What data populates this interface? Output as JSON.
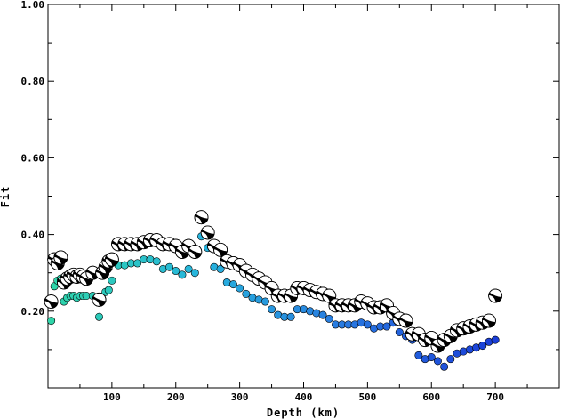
{
  "chart_data": {
    "type": "scatter",
    "title": "",
    "xlabel": "Depth (km)",
    "ylabel": "Fit",
    "xlim": [
      0,
      800
    ],
    "ylim": [
      0,
      1.0
    ],
    "x_ticks": [
      100,
      200,
      300,
      400,
      500,
      600,
      700
    ],
    "y_ticks": [
      0.2,
      0.4,
      0.6,
      0.8,
      1.0
    ],
    "x_tick_labels": [
      "100",
      "200",
      "300",
      "400",
      "500",
      "600",
      "700"
    ],
    "y_tick_labels": [
      "0.20",
      "0.40",
      "0.60",
      "0.80",
      "1.00"
    ],
    "grid": false,
    "series": [
      {
        "marker": "focal-mechanism",
        "x": [
          5,
          10,
          15,
          20,
          25,
          30,
          35,
          40,
          45,
          50,
          55,
          60,
          70,
          80,
          85,
          90,
          95,
          100,
          110,
          120,
          130,
          140,
          150,
          160,
          170,
          180,
          190,
          200,
          210,
          220,
          230,
          240,
          250,
          260,
          270,
          280,
          290,
          300,
          310,
          320,
          330,
          340,
          350,
          360,
          370,
          380,
          390,
          400,
          410,
          420,
          430,
          440,
          450,
          460,
          470,
          480,
          490,
          500,
          510,
          520,
          530,
          540,
          550,
          560,
          570,
          580,
          590,
          600,
          610,
          620,
          630,
          640,
          650,
          660,
          670,
          680,
          690,
          700
        ],
        "y": [
          0.225,
          0.335,
          0.325,
          0.34,
          0.275,
          0.285,
          0.29,
          0.295,
          0.29,
          0.295,
          0.29,
          0.285,
          0.3,
          0.23,
          0.3,
          0.315,
          0.33,
          0.335,
          0.375,
          0.375,
          0.375,
          0.375,
          0.38,
          0.385,
          0.385,
          0.375,
          0.375,
          0.37,
          0.355,
          0.37,
          0.355,
          0.445,
          0.405,
          0.37,
          0.36,
          0.33,
          0.325,
          0.32,
          0.305,
          0.295,
          0.285,
          0.275,
          0.26,
          0.24,
          0.24,
          0.24,
          0.26,
          0.26,
          0.255,
          0.25,
          0.245,
          0.24,
          0.215,
          0.215,
          0.215,
          0.215,
          0.225,
          0.22,
          0.21,
          0.21,
          0.215,
          0.195,
          0.18,
          0.175,
          0.14,
          0.14,
          0.125,
          0.13,
          0.11,
          0.125,
          0.135,
          0.15,
          0.155,
          0.16,
          0.165,
          0.17,
          0.175,
          0.24
        ],
        "colors": [
          "#000000",
          "#ffffff"
        ]
      },
      {
        "marker": "dot",
        "x": [
          5,
          10,
          15,
          20,
          25,
          30,
          35,
          40,
          45,
          50,
          55,
          60,
          70,
          80,
          85,
          90,
          95,
          100,
          110,
          120,
          130,
          140,
          150,
          160,
          170,
          180,
          190,
          200,
          210,
          220,
          230,
          240,
          250,
          260,
          270,
          280,
          290,
          300,
          310,
          320,
          330,
          340,
          350,
          360,
          370,
          380,
          390,
          400,
          410,
          420,
          430,
          440,
          450,
          460,
          470,
          480,
          490,
          500,
          510,
          520,
          530,
          540,
          550,
          560,
          570,
          580,
          590,
          600,
          610,
          620,
          630,
          640,
          650,
          660,
          670,
          680,
          690,
          700
        ],
        "y": [
          0.175,
          0.265,
          0.28,
          0.285,
          0.225,
          0.235,
          0.24,
          0.24,
          0.235,
          0.24,
          0.24,
          0.24,
          0.24,
          0.185,
          0.23,
          0.25,
          0.255,
          0.28,
          0.32,
          0.32,
          0.325,
          0.325,
          0.335,
          0.335,
          0.33,
          0.31,
          0.315,
          0.305,
          0.295,
          0.31,
          0.3,
          0.395,
          0.365,
          0.315,
          0.31,
          0.275,
          0.27,
          0.26,
          0.245,
          0.235,
          0.23,
          0.225,
          0.205,
          0.19,
          0.185,
          0.185,
          0.205,
          0.205,
          0.2,
          0.195,
          0.19,
          0.18,
          0.165,
          0.165,
          0.165,
          0.165,
          0.17,
          0.165,
          0.155,
          0.16,
          0.16,
          0.17,
          0.145,
          0.135,
          0.125,
          0.085,
          0.075,
          0.08,
          0.07,
          0.055,
          0.075,
          0.09,
          0.095,
          0.1,
          0.105,
          0.11,
          0.12,
          0.125
        ],
        "color_ramp": [
          "#2fd6a8",
          "#27b6dd",
          "#2878e0",
          "#1a3ed8"
        ]
      }
    ]
  }
}
